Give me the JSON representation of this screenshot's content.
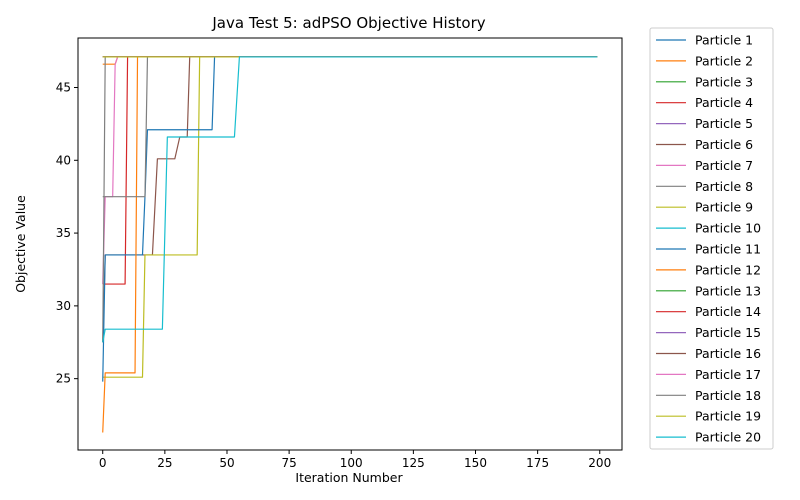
{
  "chart_data": {
    "type": "line",
    "title": "Java Test 5: adPSO Objective History",
    "xlabel": "Iteration Number",
    "ylabel": "Objective Value",
    "xlim": [
      -9.95,
      208.95
    ],
    "ylim": [
      20.1,
      48.4
    ],
    "xticks": [
      0,
      25,
      50,
      75,
      100,
      125,
      150,
      175,
      200
    ],
    "yticks": [
      25,
      30,
      35,
      40,
      45
    ],
    "grid": false,
    "legend_position": "outside-right",
    "series": [
      {
        "name": "Particle 1",
        "color": "#1f77b4",
        "x": [
          0,
          1,
          199
        ],
        "y": [
          47.1,
          47.1,
          47.1
        ]
      },
      {
        "name": "Particle 2",
        "color": "#ff7f0e",
        "x": [
          0,
          5,
          6,
          199
        ],
        "y": [
          46.6,
          46.6,
          47.1,
          47.1
        ]
      },
      {
        "name": "Particle 3",
        "color": "#2ca02c",
        "x": [
          0,
          1,
          199
        ],
        "y": [
          47.1,
          47.1,
          47.1
        ]
      },
      {
        "name": "Particle 4",
        "color": "#d62728",
        "x": [
          0,
          9,
          10,
          199
        ],
        "y": [
          31.5,
          31.5,
          47.1,
          47.1
        ]
      },
      {
        "name": "Particle 5",
        "color": "#9467bd",
        "x": [
          0,
          1,
          199
        ],
        "y": [
          47.1,
          47.1,
          47.1
        ]
      },
      {
        "name": "Particle 6",
        "color": "#8c564b",
        "x": [
          0,
          1,
          20,
          22,
          29,
          31,
          34,
          35,
          199
        ],
        "y": [
          27.5,
          33.5,
          33.5,
          40.1,
          40.1,
          41.6,
          41.6,
          47.1,
          47.1
        ]
      },
      {
        "name": "Particle 7",
        "color": "#e377c2",
        "x": [
          0,
          1,
          4,
          5,
          6,
          199
        ],
        "y": [
          31.5,
          37.5,
          37.5,
          46.6,
          47.1,
          47.1
        ]
      },
      {
        "name": "Particle 8",
        "color": "#7f7f7f",
        "x": [
          0,
          1,
          199
        ],
        "y": [
          27.5,
          47.1,
          47.1
        ]
      },
      {
        "name": "Particle 9",
        "color": "#bcbd22",
        "x": [
          0,
          1,
          16,
          17,
          38,
          39,
          199
        ],
        "y": [
          25.1,
          25.1,
          25.1,
          33.5,
          33.5,
          47.1,
          47.1
        ]
      },
      {
        "name": "Particle 10",
        "color": "#17becf",
        "x": [
          0,
          1,
          199
        ],
        "y": [
          47.1,
          47.1,
          47.1
        ]
      },
      {
        "name": "Particle 11",
        "color": "#1f77b4",
        "x": [
          0,
          1,
          16,
          17,
          18,
          44,
          45,
          199
        ],
        "y": [
          24.8,
          33.5,
          33.5,
          37.5,
          42.1,
          42.1,
          47.1,
          47.1
        ]
      },
      {
        "name": "Particle 12",
        "color": "#ff7f0e",
        "x": [
          0,
          1,
          13,
          14,
          199
        ],
        "y": [
          21.3,
          25.4,
          25.4,
          47.1,
          47.1
        ]
      },
      {
        "name": "Particle 13",
        "color": "#2ca02c",
        "x": [
          0,
          1,
          199
        ],
        "y": [
          47.1,
          47.1,
          47.1
        ]
      },
      {
        "name": "Particle 14",
        "color": "#d62728",
        "x": [
          0,
          1,
          199
        ],
        "y": [
          47.1,
          47.1,
          47.1
        ]
      },
      {
        "name": "Particle 15",
        "color": "#9467bd",
        "x": [
          0,
          1,
          199
        ],
        "y": [
          47.1,
          47.1,
          47.1
        ]
      },
      {
        "name": "Particle 16",
        "color": "#8c564b",
        "x": [
          0,
          1,
          199
        ],
        "y": [
          47.1,
          47.1,
          47.1
        ]
      },
      {
        "name": "Particle 17",
        "color": "#e377c2",
        "x": [
          0,
          1,
          199
        ],
        "y": [
          47.1,
          47.1,
          47.1
        ]
      },
      {
        "name": "Particle 18",
        "color": "#7f7f7f",
        "x": [
          0,
          1,
          17,
          18,
          199
        ],
        "y": [
          37.5,
          37.5,
          37.5,
          47.1,
          47.1
        ]
      },
      {
        "name": "Particle 19",
        "color": "#bcbd22",
        "x": [
          0,
          1,
          199
        ],
        "y": [
          47.1,
          47.1,
          47.1
        ]
      },
      {
        "name": "Particle 20",
        "color": "#17becf",
        "x": [
          0,
          1,
          24,
          26,
          53,
          55,
          199
        ],
        "y": [
          27.5,
          28.4,
          28.4,
          41.6,
          41.6,
          47.1,
          47.1
        ]
      }
    ]
  }
}
